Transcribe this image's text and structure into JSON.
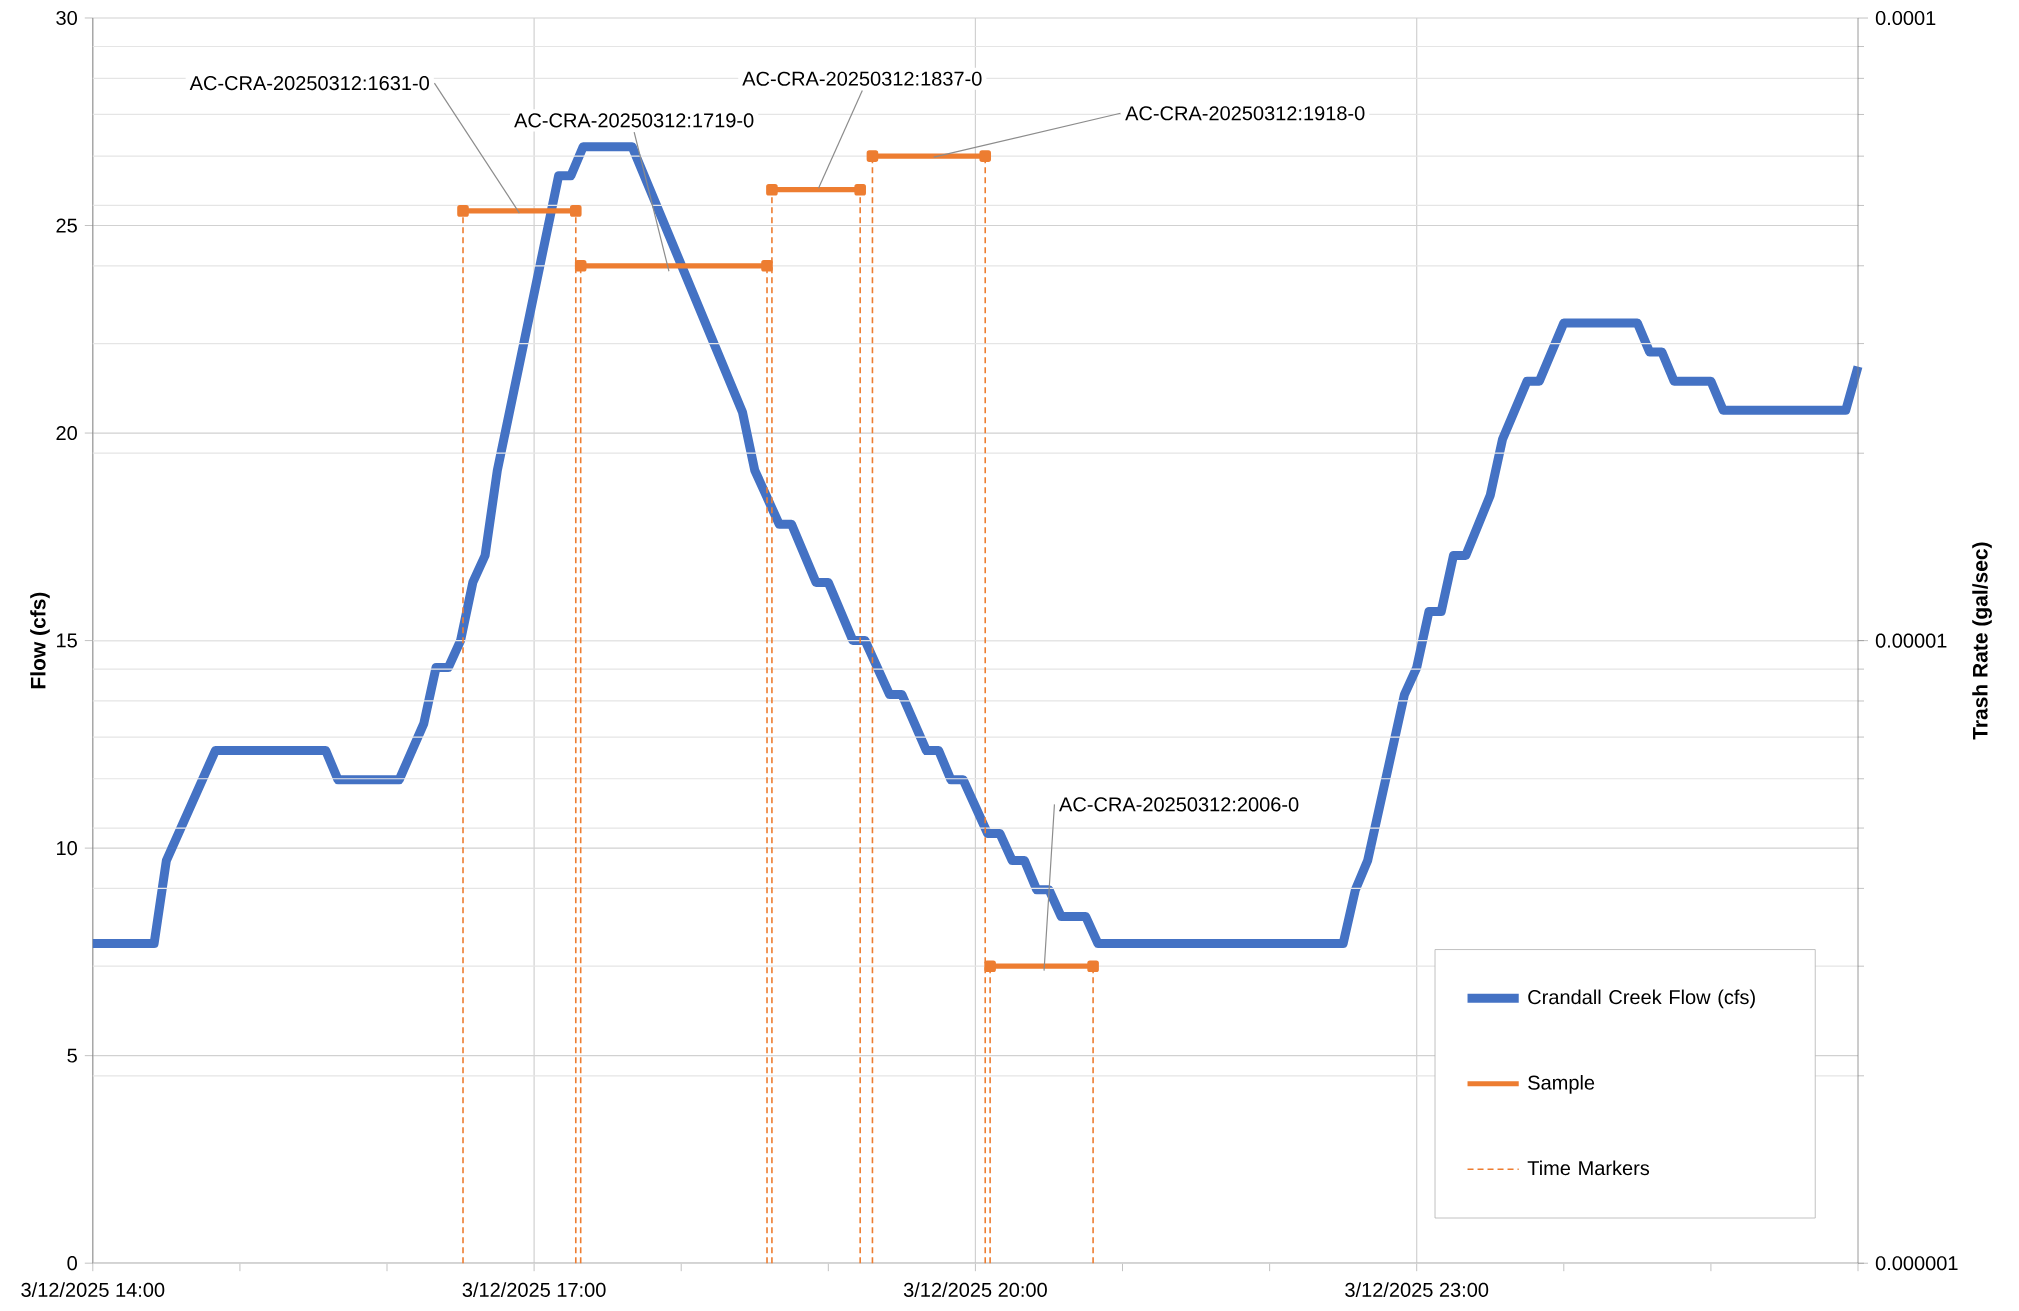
{
  "chart_data": {
    "type": "line",
    "xlabel": null,
    "ylabel": "Flow (cfs)",
    "y2label": "Trash Rate (gal/sec)",
    "xlim": [
      "2025-03-12T14:00",
      "2025-03-13T02:00"
    ],
    "xticks": [
      {
        "value": "2025-03-12T14:00",
        "label": "3/12/2025 14:00"
      },
      {
        "value": "2025-03-12T15:00",
        "label": null
      },
      {
        "value": "2025-03-12T16:00",
        "label": null
      },
      {
        "value": "2025-03-12T17:00",
        "label": "3/12/2025 17:00"
      },
      {
        "value": "2025-03-12T18:00",
        "label": null
      },
      {
        "value": "2025-03-12T19:00",
        "label": null
      },
      {
        "value": "2025-03-12T20:00",
        "label": "3/12/2025 20:00"
      },
      {
        "value": "2025-03-12T21:00",
        "label": null
      },
      {
        "value": "2025-03-12T22:00",
        "label": null
      },
      {
        "value": "2025-03-12T23:00",
        "label": "3/12/2025 23:00"
      },
      {
        "value": "2025-03-13T00:00",
        "label": null
      },
      {
        "value": "2025-03-13T01:00",
        "label": null
      },
      {
        "value": "2025-03-13T02:00",
        "label": null
      }
    ],
    "ylim": [
      0,
      30
    ],
    "yticks": [
      0,
      5,
      10,
      15,
      20,
      25,
      30
    ],
    "y2lim": [
      1e-06,
      0.0001
    ],
    "y2ticks": [
      {
        "value": 1e-06,
        "label": "0.000001"
      },
      {
        "value": 1e-05,
        "label": "0.00001"
      },
      {
        "value": 0.0001,
        "label": "0.0001"
      }
    ],
    "log": "y2",
    "grid": true,
    "legend": "bottom right",
    "series": [
      {
        "name": "Crandall Creek Flow (cfs)",
        "color": "#4472c4",
        "x": [
          "2025-03-12T14:00",
          "2025-03-12T14:25",
          "2025-03-12T14:30",
          "2025-03-12T14:50",
          "2025-03-12T15:35",
          "2025-03-12T15:40",
          "2025-03-12T16:05",
          "2025-03-12T16:15",
          "2025-03-12T16:20",
          "2025-03-12T16:25",
          "2025-03-12T16:30",
          "2025-03-12T16:35",
          "2025-03-12T16:40",
          "2025-03-12T16:45",
          "2025-03-12T17:10",
          "2025-03-12T17:15",
          "2025-03-12T17:20",
          "2025-03-12T17:40",
          "2025-03-12T18:25",
          "2025-03-12T18:30",
          "2025-03-12T18:40",
          "2025-03-12T18:45",
          "2025-03-12T18:55",
          "2025-03-12T19:00",
          "2025-03-12T19:10",
          "2025-03-12T19:15",
          "2025-03-12T19:25",
          "2025-03-12T19:30",
          "2025-03-12T19:40",
          "2025-03-12T19:45",
          "2025-03-12T19:50",
          "2025-03-12T19:55",
          "2025-03-12T20:05",
          "2025-03-12T20:10",
          "2025-03-12T20:15",
          "2025-03-12T20:20",
          "2025-03-12T20:25",
          "2025-03-12T20:30",
          "2025-03-12T20:35",
          "2025-03-12T20:45",
          "2025-03-12T20:50",
          "2025-03-12T22:30",
          "2025-03-12T22:35",
          "2025-03-12T22:40",
          "2025-03-12T22:55",
          "2025-03-12T23:00",
          "2025-03-12T23:05",
          "2025-03-12T23:10",
          "2025-03-12T23:15",
          "2025-03-12T23:20",
          "2025-03-12T23:30",
          "2025-03-12T23:35",
          "2025-03-12T23:45",
          "2025-03-12T23:50",
          "2025-03-13T00:00",
          "2025-03-13T00:30",
          "2025-03-13T00:35",
          "2025-03-13T00:40",
          "2025-03-13T00:45",
          "2025-03-13T01:00",
          "2025-03-13T01:05",
          "2025-03-13T01:55",
          "2025-03-13T02:00"
        ],
        "values": [
          7.7,
          7.7,
          9.7,
          12.35,
          12.35,
          11.65,
          11.65,
          13.0,
          14.35,
          14.35,
          15.0,
          16.4,
          17.05,
          19.1,
          26.2,
          26.2,
          26.9,
          26.9,
          20.5,
          19.1,
          17.8,
          17.8,
          16.4,
          16.4,
          15.0,
          15.0,
          13.7,
          13.7,
          12.35,
          12.35,
          11.65,
          11.65,
          10.35,
          10.35,
          9.7,
          9.7,
          9.0,
          9.0,
          8.35,
          8.35,
          7.7,
          7.7,
          9.0,
          9.7,
          13.7,
          14.35,
          15.7,
          15.7,
          17.05,
          17.05,
          18.5,
          19.85,
          21.25,
          21.25,
          22.65,
          22.65,
          21.95,
          21.95,
          21.25,
          21.25,
          20.55,
          20.55,
          21.6
        ]
      },
      {
        "name": "Sample",
        "axis": "y2",
        "color": "#ed7d31",
        "marker": "square",
        "x": [
          "2025-03-12T16:31",
          "2025-03-12T17:17",
          null,
          "2025-03-12T17:19",
          "2025-03-12T18:35",
          null,
          "2025-03-12T18:37",
          "2025-03-12T19:13",
          null,
          "2025-03-12T19:18",
          "2025-03-12T20:04",
          null,
          "2025-03-12T20:06",
          "2025-03-12T20:48"
        ],
        "values": [
          4.9e-05,
          4.9e-05,
          null,
          4e-05,
          4e-05,
          null,
          5.3e-05,
          5.3e-05,
          null,
          6e-05,
          6e-05,
          null,
          3e-06,
          3e-06
        ]
      },
      {
        "name": "Time Markers",
        "axis": "y2",
        "color": "#ed7d31",
        "line_style": "dashed",
        "x": [
          "2025-03-12T16:31",
          "2025-03-12T16:31",
          null,
          "2025-03-12T17:17",
          "2025-03-12T17:17",
          null,
          "2025-03-12T17:19",
          "2025-03-12T17:19",
          null,
          "2025-03-12T18:35",
          "2025-03-12T18:35",
          null,
          "2025-03-12T18:37",
          "2025-03-12T18:37",
          null,
          "2025-03-12T19:13",
          "2025-03-12T19:13",
          null,
          "2025-03-12T19:18",
          "2025-03-12T19:18",
          null,
          "2025-03-12T20:04",
          "2025-03-12T20:04",
          null,
          "2025-03-12T20:06",
          "2025-03-12T20:06",
          null,
          "2025-03-12T20:48",
          "2025-03-12T20:48"
        ],
        "values": [
          1e-06,
          4.9e-05,
          null,
          1e-06,
          4.9e-05,
          null,
          1e-06,
          4e-05,
          null,
          1e-06,
          4e-05,
          null,
          1e-06,
          5.3e-05,
          null,
          1e-06,
          5.3e-05,
          null,
          1e-06,
          6e-05,
          null,
          1e-06,
          6e-05,
          null,
          1e-06,
          3e-06,
          null,
          1e-06,
          3e-06
        ]
      }
    ],
    "annotations": [
      {
        "text": "AC-CRA-20250312:1631-0",
        "x": "2025-03-12T16:54",
        "y": 25.3
      },
      {
        "text": "AC-CRA-20250312:1719-0",
        "x": "2025-03-12T17:55",
        "y": 23.9
      },
      {
        "text": "AC-CRA-20250312:1837-0",
        "x": "2025-03-12T18:56",
        "y": 25.9
      },
      {
        "text": "AC-CRA-20250312:1918-0",
        "x": "2025-03-12T19:43",
        "y": 26.65
      },
      {
        "text": "AC-CRA-20250312:2006-0",
        "x": "2025-03-12T20:28",
        "y": 7.05
      }
    ]
  }
}
